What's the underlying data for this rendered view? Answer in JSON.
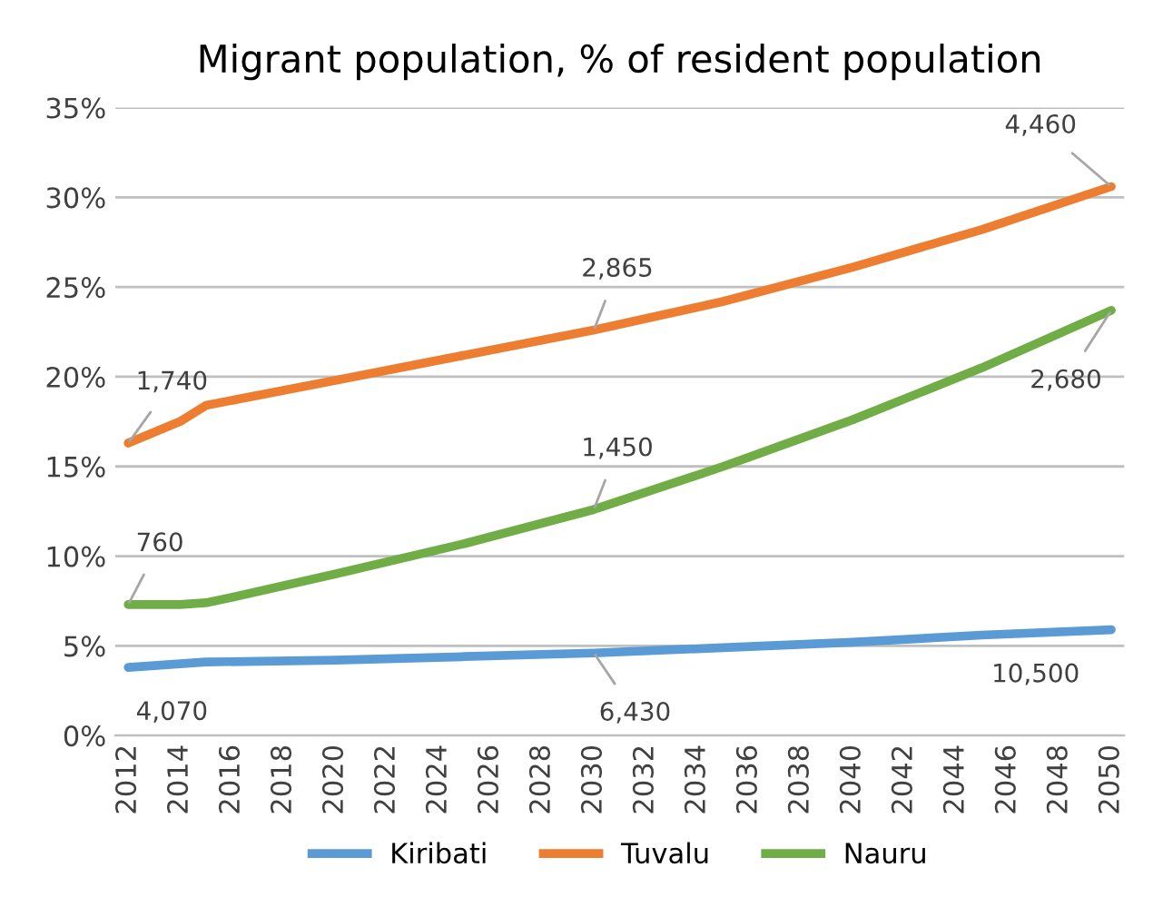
{
  "chart_data": {
    "type": "line",
    "title": "Migrant population, % of resident population",
    "xlim": [
      2011.5,
      2050.5
    ],
    "xticks": [
      2012,
      2014,
      2016,
      2018,
      2020,
      2022,
      2024,
      2026,
      2028,
      2030,
      2032,
      2034,
      2036,
      2038,
      2040,
      2042,
      2044,
      2046,
      2048,
      2050
    ],
    "ylim": [
      0,
      35
    ],
    "yticks": [
      {
        "value": 0,
        "label": "0%"
      },
      {
        "value": 5,
        "label": "5%"
      },
      {
        "value": 10,
        "label": "10%"
      },
      {
        "value": 15,
        "label": "15%"
      },
      {
        "value": 20,
        "label": "20%"
      },
      {
        "value": 25,
        "label": "25%"
      },
      {
        "value": 30,
        "label": "30%"
      },
      {
        "value": 35,
        "label": "35%"
      }
    ],
    "grid": "y",
    "legend": "bottom",
    "marker": "none",
    "line_style": "solid",
    "series": [
      {
        "name": "Kiribati",
        "color": "#5b9bd5",
        "x": [
          2012,
          2015,
          2020,
          2025,
          2030,
          2035,
          2040,
          2045,
          2050
        ],
        "values": [
          3.8,
          4.1,
          4.2,
          4.4,
          4.6,
          4.9,
          5.2,
          5.6,
          5.9
        ]
      },
      {
        "name": "Tuvalu",
        "color": "#ed7d31",
        "x": [
          2012,
          2014,
          2015,
          2020,
          2025,
          2030,
          2035,
          2040,
          2045,
          2050
        ],
        "values": [
          16.3,
          17.5,
          18.4,
          19.8,
          21.2,
          22.6,
          24.2,
          26.1,
          28.2,
          30.6
        ]
      },
      {
        "name": "Nauru",
        "color": "#70ad47",
        "x": [
          2012,
          2014,
          2015,
          2016,
          2020,
          2025,
          2030,
          2035,
          2040,
          2045,
          2050
        ],
        "values": [
          7.3,
          7.3,
          7.4,
          7.7,
          9.0,
          10.7,
          12.6,
          15.0,
          17.6,
          20.5,
          23.7
        ]
      }
    ],
    "annotations": [
      {
        "text": "1,740",
        "x": 2012,
        "y": 16.3
      },
      {
        "text": "760",
        "x": 2012,
        "y": 7.3
      },
      {
        "text": "4,070",
        "x": 2012,
        "y": 3.8
      },
      {
        "text": "2,865",
        "x": 2030,
        "y": 22.6
      },
      {
        "text": "1,450",
        "x": 2030,
        "y": 12.6
      },
      {
        "text": "6,430",
        "x": 2030,
        "y": 4.6
      },
      {
        "text": "4,460",
        "x": 2050,
        "y": 30.6
      },
      {
        "text": "2,680",
        "x": 2050,
        "y": 23.7
      },
      {
        "text": "10,500",
        "x": 2050,
        "y": 5.9
      }
    ]
  }
}
